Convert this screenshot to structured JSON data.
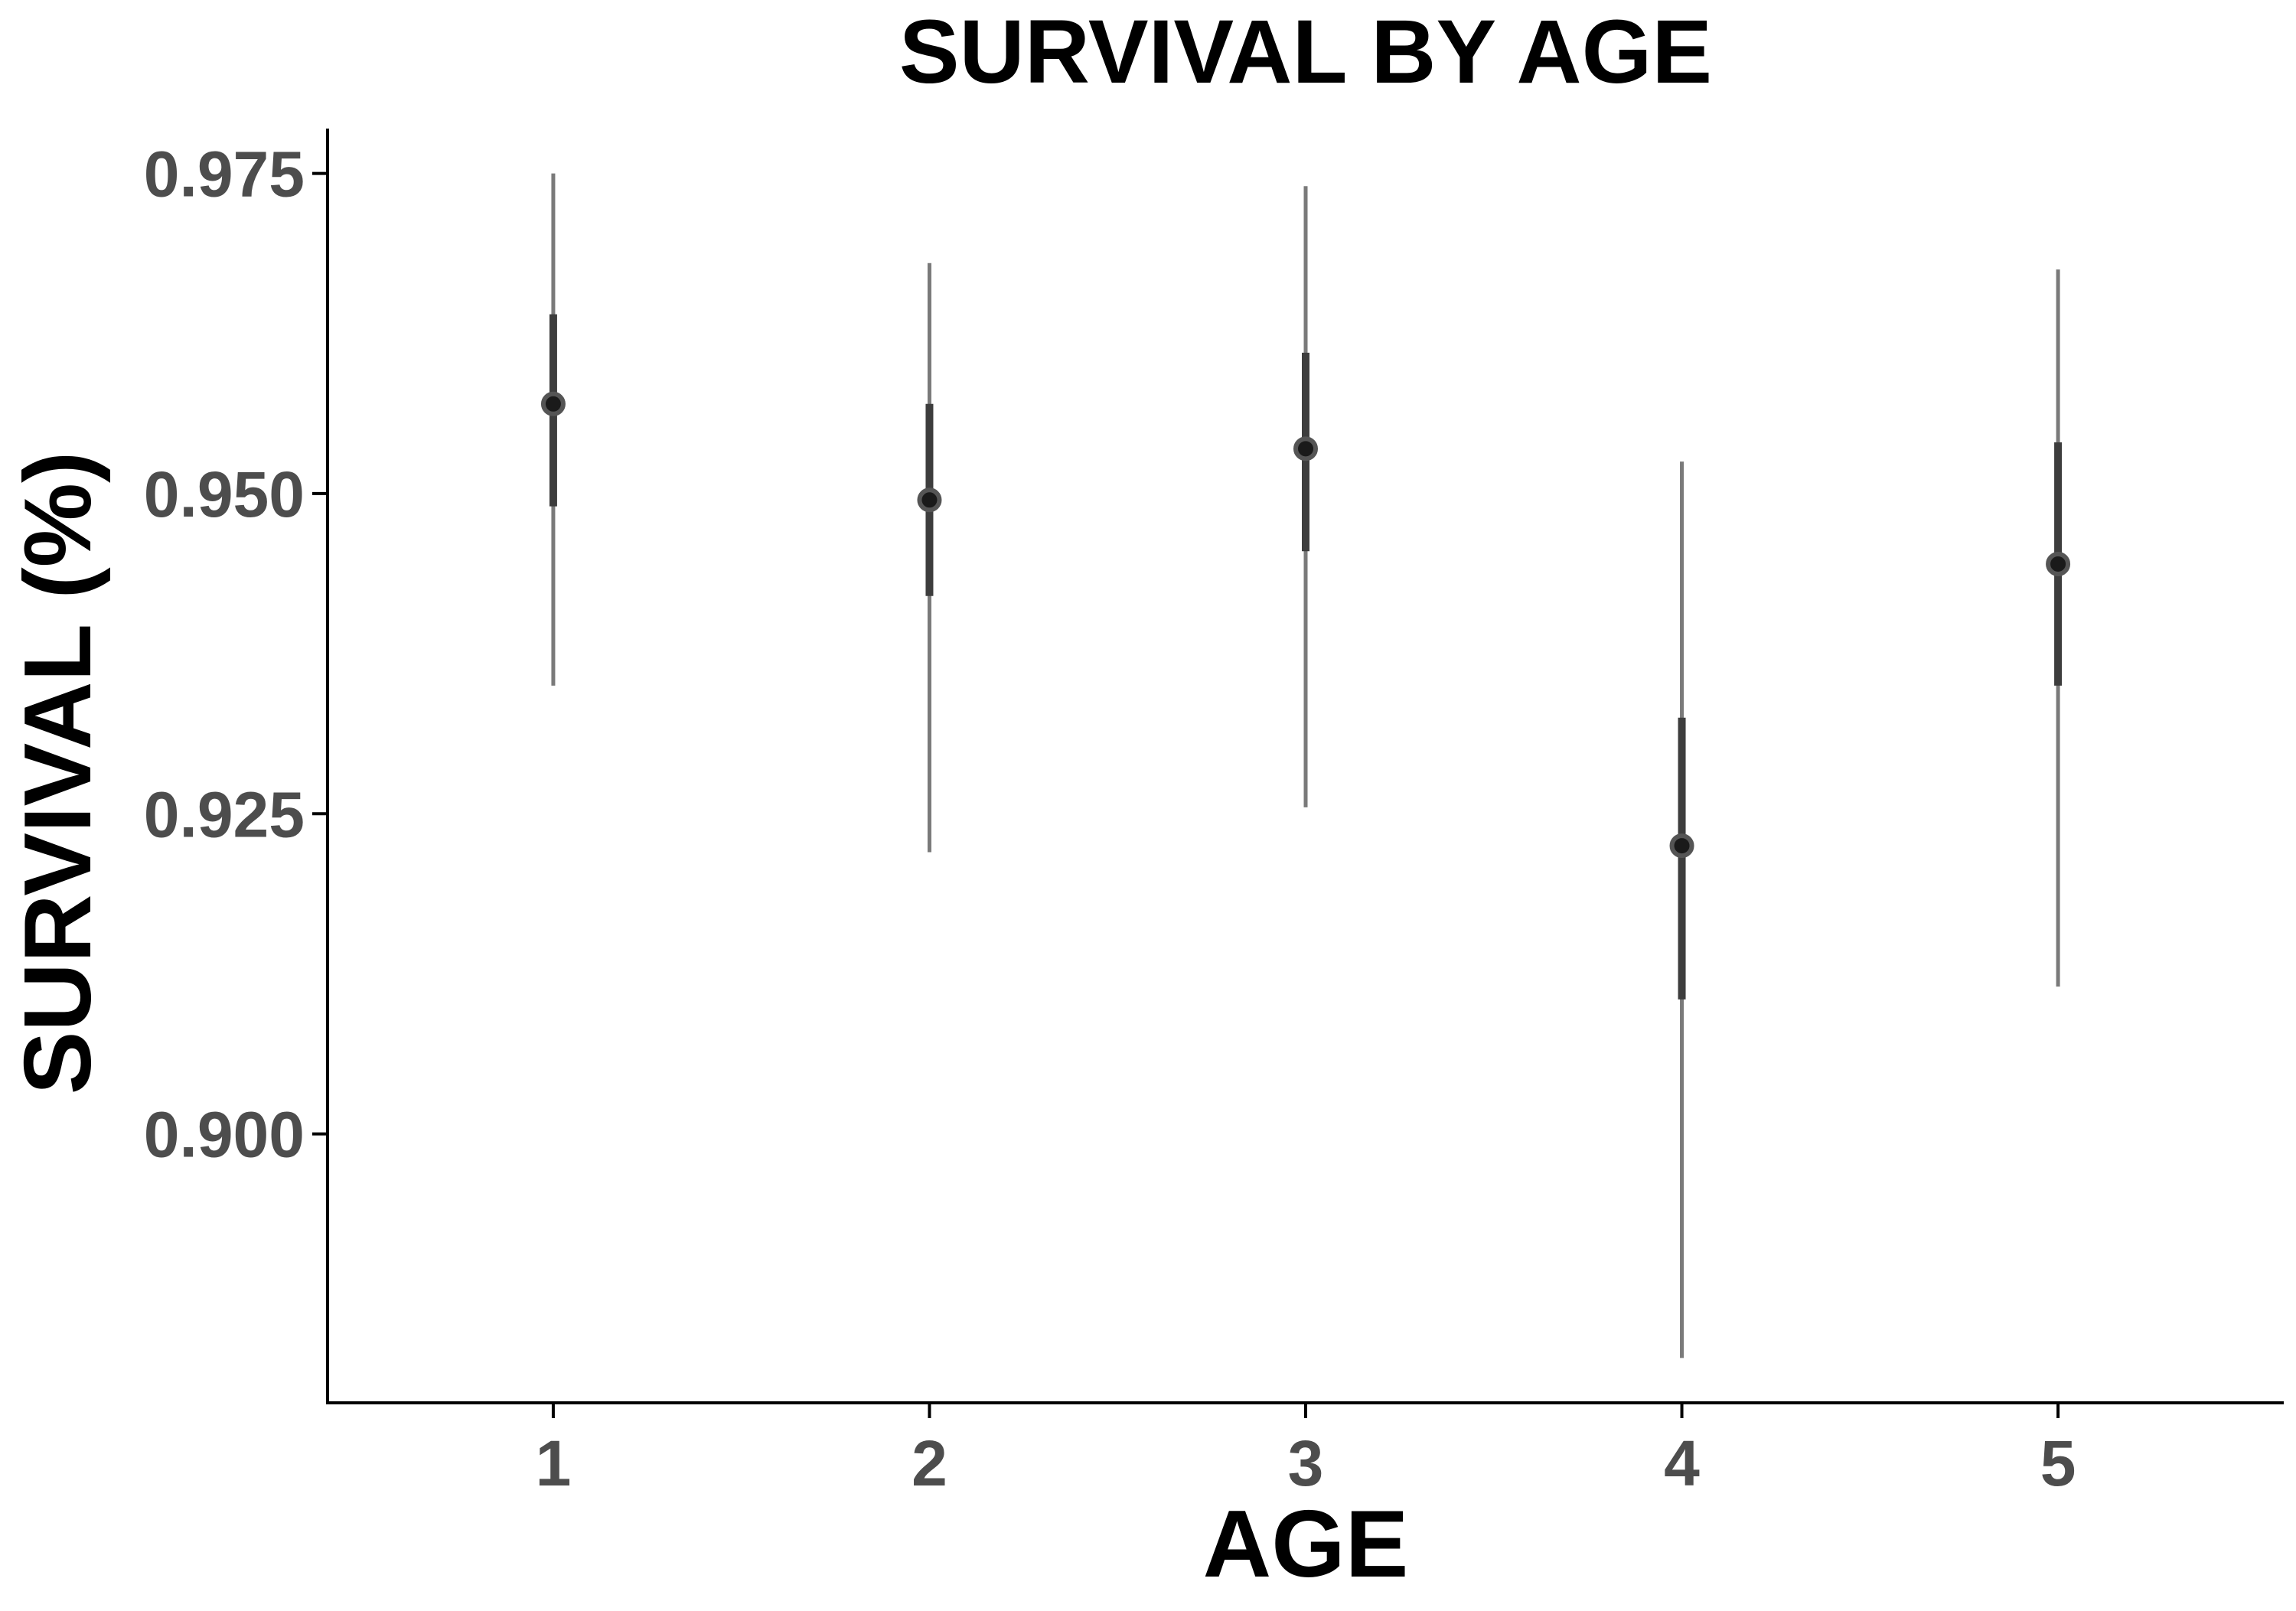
{
  "chart_data": {
    "type": "scatter",
    "title": "SURVIVAL BY AGE",
    "xlabel": "AGE",
    "ylabel": "SURVIVAL (%)",
    "x_categories": [
      "1",
      "2",
      "3",
      "4",
      "5"
    ],
    "y_ticks": [
      "0.900",
      "0.925",
      "0.950",
      "0.975"
    ],
    "y_tick_values": [
      0.9,
      0.925,
      0.95,
      0.975
    ],
    "xlim": [
      0.4,
      5.6
    ],
    "ylim": [
      0.879,
      0.9785
    ],
    "grid": false,
    "legend": "none",
    "points": [
      {
        "x": 1,
        "y": 0.957,
        "inner": [
          0.949,
          0.964
        ],
        "outer": [
          0.935,
          0.975
        ]
      },
      {
        "x": 2,
        "y": 0.9495,
        "inner": [
          0.942,
          0.957
        ],
        "outer": [
          0.922,
          0.968
        ]
      },
      {
        "x": 3,
        "y": 0.9535,
        "inner": [
          0.9455,
          0.961
        ],
        "outer": [
          0.9255,
          0.974
        ]
      },
      {
        "x": 4,
        "y": 0.9225,
        "inner": [
          0.9105,
          0.9325
        ],
        "outer": [
          0.8825,
          0.9525
        ]
      },
      {
        "x": 5,
        "y": 0.9445,
        "inner": [
          0.935,
          0.954
        ],
        "outer": [
          0.9115,
          0.9675
        ]
      }
    ],
    "colors": {
      "point": "#1a1a1a",
      "inner_bar": "#3d3d3d",
      "outer_bar": "#7a7a7a",
      "axis": "#000000",
      "tick_label": "#4d4d4d",
      "title": "#000000"
    }
  }
}
